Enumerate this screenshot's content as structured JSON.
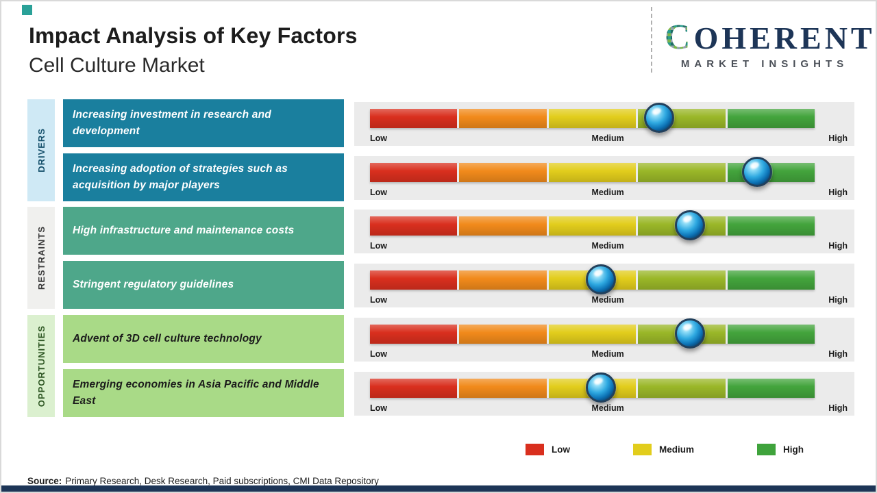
{
  "page": {
    "title": "Impact Analysis of Key Factors",
    "subtitle": "Cell Culture Market",
    "accent_color": "#2aa198",
    "brand_navy": "#1d3557",
    "source_prefix": "Source:",
    "source_text": "Primary Research, Desk Research, Paid subscriptions, CMI Data Repository"
  },
  "logo": {
    "wordmark_first_letter": "C",
    "wordmark_rest": "OHERENT",
    "tagline": "MARKET INSIGHTS"
  },
  "groups": [
    {
      "label": "DRIVERS",
      "strip_color": "#cfe9f5",
      "strip_text_color": "#15506b",
      "box_color": "#1a7f9e",
      "text_color": "#ffffff"
    },
    {
      "label": "RESTRAINTS",
      "strip_color": "#f0f0ee",
      "strip_text_color": "#3a3a3a",
      "box_color": "#4ea78a",
      "text_color": "#ffffff"
    },
    {
      "label": "OPPORTUNITIES",
      "strip_color": "#dbf0cf",
      "strip_text_color": "#2f5724",
      "box_color": "#a9da87",
      "text_color": "#1b1b1b"
    }
  ],
  "rows": [
    {
      "category": "DRIVERS",
      "text": "Increasing investment in research and development",
      "impact_level": "Medium-High",
      "impact_position": 0.65
    },
    {
      "category": "DRIVERS",
      "text": "Increasing adoption of strategies such as acquisition by major players",
      "impact_level": "High",
      "impact_position": 0.87
    },
    {
      "category": "RESTRAINTS",
      "text": "High infrastructure and maintenance costs",
      "impact_level": "Medium-High",
      "impact_position": 0.72
    },
    {
      "category": "RESTRAINTS",
      "text": "Stringent regulatory guidelines",
      "impact_level": "Medium",
      "impact_position": 0.52
    },
    {
      "category": "OPPORTUNITIES",
      "text": "Advent of 3D cell culture technology",
      "impact_level": "Medium-High",
      "impact_position": 0.72
    },
    {
      "category": "OPPORTUNITIES",
      "text": "Emerging economies in Asia Pacific and Middle East",
      "impact_level": "Medium",
      "impact_position": 0.52
    }
  ],
  "scale": {
    "low": "Low",
    "medium": "Medium",
    "high": "High"
  },
  "bar_colors": [
    "#d92f1e",
    "#f18a1b",
    "#e2cd1c",
    "#9ab728",
    "#43a43c"
  ],
  "legend": [
    {
      "label": "Low",
      "color": "#d92f1e"
    },
    {
      "label": "Medium",
      "color": "#e2cd1c"
    },
    {
      "label": "High",
      "color": "#3fa33c"
    }
  ]
}
